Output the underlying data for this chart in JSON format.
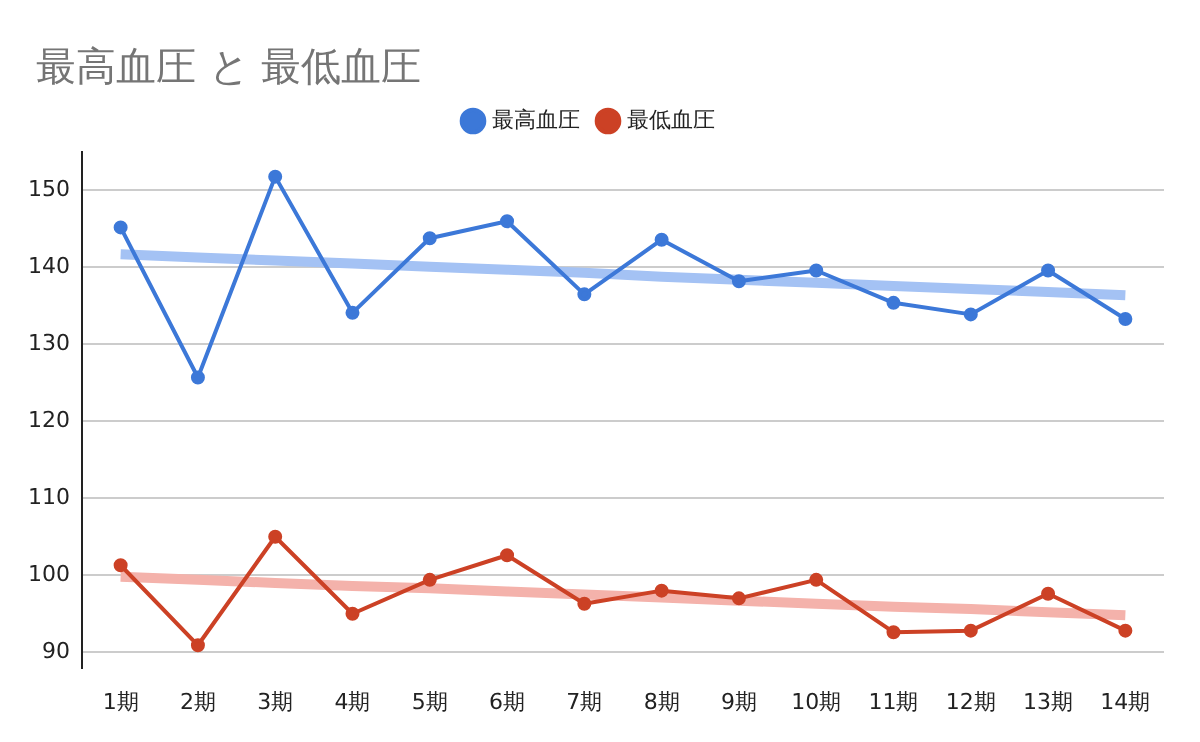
{
  "chart_data": {
    "type": "line",
    "title": "最高血圧 と 最低血圧",
    "categories": [
      "1期",
      "2期",
      "3期",
      "4期",
      "5期",
      "6期",
      "7期",
      "8期",
      "9期",
      "10期",
      "11期",
      "12期",
      "13期",
      "14期"
    ],
    "series": [
      {
        "name": "最高血圧",
        "color": "#3c78d8",
        "values": [
          145.2,
          125.7,
          151.8,
          134.1,
          143.8,
          146,
          136.5,
          143.6,
          138.2,
          139.6,
          135.4,
          133.9,
          139.6,
          133.3
        ]
      },
      {
        "name": "最低血圧",
        "color": "#cc4125",
        "values": [
          101.3,
          90.9,
          105,
          95,
          99.4,
          102.6,
          96.3,
          98,
          97,
          99.4,
          92.6,
          92.8,
          97.6,
          92.8
        ]
      },
      {
        "type": "line",
        "color": "#a4c2f4",
        "marker": "none",
        "values": [
          141.7,
          141.3,
          140.9,
          140.5,
          140.1,
          139.7,
          139.3,
          138.8,
          138.4,
          138.0,
          137.6,
          137.2,
          136.8,
          136.4
        ]
      },
      {
        "type": "line",
        "color": "#f4b2ab",
        "marker": "none",
        "values": [
          99.8,
          99.4,
          99.0,
          98.6,
          98.3,
          97.9,
          97.5,
          97.1,
          96.7,
          96.3,
          95.9,
          95.6,
          95.2,
          94.8
        ]
      }
    ],
    "ylim": [
      88,
      155
    ],
    "yticks": [
      90,
      100,
      110,
      120,
      130,
      140,
      150
    ],
    "grid": "y",
    "legend": "top",
    "marker": "circle",
    "line_style": "solid"
  }
}
